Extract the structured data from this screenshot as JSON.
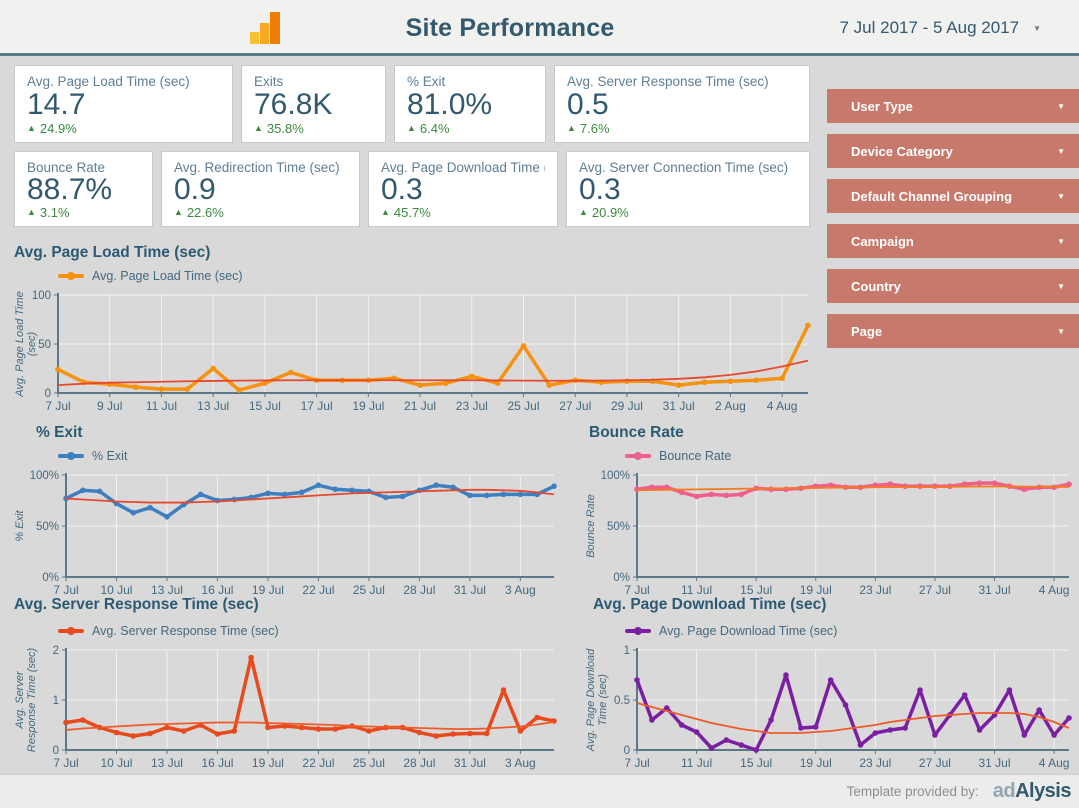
{
  "header": {
    "title": "Site Performance",
    "date_range": "7 Jul 2017 - 5 Aug 2017"
  },
  "scorecards": [
    {
      "label": "Avg. Page Load Time (sec)",
      "value": "14.7",
      "delta": "24.9%"
    },
    {
      "label": "Exits",
      "value": "76.8K",
      "delta": "35.8%"
    },
    {
      "label": "% Exit",
      "value": "81.0%",
      "delta": "6.4%"
    },
    {
      "label": "Avg. Server Response Time (sec)",
      "value": "0.5",
      "delta": "7.6%"
    },
    {
      "label": "Bounce Rate",
      "value": "88.7%",
      "delta": "3.1%"
    },
    {
      "label": "Avg. Redirection Time (sec)",
      "value": "0.9",
      "delta": "22.6%"
    },
    {
      "label": "Avg. Page Download Time (sec)",
      "value": "0.3",
      "delta": "45.7%"
    },
    {
      "label": "Avg. Server Connection Time (sec)",
      "value": "0.3",
      "delta": "20.9%"
    }
  ],
  "filters": [
    "User Type",
    "Device Category",
    "Default Channel Grouping",
    "Campaign",
    "Country",
    "Page"
  ],
  "footer": {
    "credit": "Template provided by:",
    "brand_ad": "ad",
    "brand_alysis": "Alysis"
  },
  "colors": {
    "page_bg": "#d9d9d9",
    "header_bg": "#f1f1f0",
    "card_bg": "#ffffff",
    "title_text": "#33596e",
    "label_text": "#5e7e95",
    "delta_green": "#3b8a3f",
    "filter_bg": "#c7796b",
    "axis": "#5b7886",
    "tick_text": "#44687e",
    "grid": "#f2f2f2"
  },
  "chart_data": [
    {
      "type": "line",
      "title": "Avg. Page Load Time (sec)",
      "series_name": "Avg. Page Load Time (sec)",
      "color": "#f6920f",
      "trend_color": "#e8492c",
      "ylabel_lines": [
        "Avg. Page Load Time",
        "(sec)"
      ],
      "ylim": [
        0,
        100
      ],
      "yticks": [
        0,
        50,
        100
      ],
      "ytick_labels": [
        "0",
        "50",
        "100"
      ],
      "x_tick_every": 2,
      "x_tick_labels": [
        "7 Jul",
        "9 Jul",
        "11 Jul",
        "13 Jul",
        "15 Jul",
        "17 Jul",
        "19 Jul",
        "21 Jul",
        "23 Jul",
        "25 Jul",
        "27 Jul",
        "29 Jul",
        "31 Jul",
        "2 Aug",
        "4 Aug"
      ],
      "grid": true,
      "legend_position": "top-left",
      "values": [
        24,
        11,
        9,
        6,
        4,
        4,
        25,
        3,
        10,
        21,
        13,
        13,
        13,
        15,
        8,
        10,
        17,
        10,
        48,
        8,
        13,
        11,
        12,
        12,
        8,
        11,
        12,
        13,
        15,
        69
      ],
      "trend": [
        8,
        9.5,
        10.5,
        11,
        11.5,
        12,
        12.3,
        12.6,
        12.8,
        13,
        13,
        13,
        13,
        13,
        13,
        13,
        13,
        12.8,
        12.6,
        12.5,
        12.5,
        12.6,
        13,
        13.5,
        14.5,
        16,
        18.5,
        22,
        27,
        33
      ]
    },
    {
      "type": "line",
      "title": "% Exit",
      "series_name": "% Exit",
      "color": "#3e7fc1",
      "trend_color": "#e8492c",
      "ylabel_lines": [
        "% Exit"
      ],
      "ylim": [
        0,
        100
      ],
      "yticks": [
        0,
        50,
        100
      ],
      "ytick_labels": [
        "0%",
        "50%",
        "100%"
      ],
      "x_tick_every": 3,
      "x_tick_labels": [
        "7 Jul",
        "10 Jul",
        "13 Jul",
        "16 Jul",
        "19 Jul",
        "22 Jul",
        "25 Jul",
        "28 Jul",
        "31 Jul",
        "3 Aug"
      ],
      "grid": true,
      "legend_position": "top-left",
      "values": [
        77,
        85,
        84,
        72,
        63,
        68,
        59,
        71,
        81,
        75,
        76,
        78,
        82,
        81,
        83,
        90,
        86,
        85,
        84,
        78,
        79,
        85,
        90,
        88,
        80,
        80,
        81,
        81,
        81,
        89
      ],
      "trend": [
        77,
        76,
        75,
        74,
        73.5,
        73,
        73,
        73,
        73.5,
        74,
        75,
        76,
        77,
        78,
        79,
        80,
        81,
        82,
        82.5,
        83,
        83.5,
        84,
        84.5,
        85,
        85.5,
        85.5,
        85,
        84.5,
        83,
        81
      ]
    },
    {
      "type": "line",
      "title": "Bounce Rate",
      "series_name": "Bounce Rate",
      "color": "#ee5f8d",
      "trend_color": "#f57b20",
      "ylabel_lines": [
        "Bounce Rate"
      ],
      "ylim": [
        0,
        100
      ],
      "yticks": [
        0,
        50,
        100
      ],
      "ytick_labels": [
        "0%",
        "50%",
        "100%"
      ],
      "x_tick_every": 4,
      "x_tick_labels": [
        "7 Jul",
        "11 Jul",
        "15 Jul",
        "19 Jul",
        "23 Jul",
        "27 Jul",
        "31 Jul",
        "4 Aug"
      ],
      "grid": true,
      "legend_position": "top-left",
      "values": [
        86,
        88,
        88,
        83,
        79,
        81,
        80,
        81,
        87,
        86,
        86,
        87,
        89,
        90,
        88,
        88,
        90,
        91,
        89,
        89,
        89,
        89,
        91,
        92,
        92,
        89,
        86,
        88,
        88,
        91
      ],
      "trend": [
        85,
        85.3,
        85.5,
        85.7,
        85.9,
        86.1,
        86.3,
        86.5,
        86.7,
        86.9,
        87,
        87.2,
        87.4,
        87.5,
        87.7,
        87.8,
        88,
        88.1,
        88.2,
        88.3,
        88.4,
        88.5,
        88.6,
        88.7,
        88.7,
        88.7,
        88.6,
        88.5,
        88.4,
        88.3
      ]
    },
    {
      "type": "line",
      "title": "Avg. Server Response Time (sec)",
      "series_name": "Avg. Server Response Time (sec)",
      "color": "#e8491d",
      "trend_color": "#f05a28",
      "ylabel_lines": [
        "Avg. Server",
        "Response Time (sec)"
      ],
      "ylim": [
        0,
        2
      ],
      "yticks": [
        0,
        1,
        2
      ],
      "ytick_labels": [
        "0",
        "1",
        "2"
      ],
      "x_tick_every": 3,
      "x_tick_labels": [
        "7 Jul",
        "10 Jul",
        "13 Jul",
        "16 Jul",
        "19 Jul",
        "22 Jul",
        "25 Jul",
        "28 Jul",
        "31 Jul",
        "3 Aug"
      ],
      "grid": true,
      "legend_position": "top-left",
      "values": [
        0.55,
        0.6,
        0.45,
        0.35,
        0.28,
        0.33,
        0.45,
        0.38,
        0.5,
        0.32,
        0.38,
        1.85,
        0.45,
        0.48,
        0.45,
        0.42,
        0.42,
        0.48,
        0.38,
        0.45,
        0.45,
        0.35,
        0.28,
        0.32,
        0.33,
        0.33,
        1.2,
        0.38,
        0.65,
        0.58
      ],
      "trend": [
        0.4,
        0.43,
        0.45,
        0.47,
        0.49,
        0.51,
        0.52,
        0.53,
        0.54,
        0.55,
        0.55,
        0.55,
        0.54,
        0.53,
        0.52,
        0.51,
        0.5,
        0.48,
        0.47,
        0.46,
        0.45,
        0.44,
        0.43,
        0.42,
        0.42,
        0.43,
        0.45,
        0.47,
        0.51,
        0.56
      ]
    },
    {
      "type": "line",
      "title": "Avg. Page Download Time (sec)",
      "series_name": "Avg. Page Download Time (sec)",
      "color": "#7b1fa2",
      "trend_color": "#f05a28",
      "ylabel_lines": [
        "Avg. Page Download",
        "Time (sec)"
      ],
      "ylim": [
        0,
        1
      ],
      "yticks": [
        0,
        0.5,
        1
      ],
      "ytick_labels": [
        "0",
        "0.5",
        "1"
      ],
      "x_tick_every": 4,
      "x_tick_labels": [
        "7 Jul",
        "11 Jul",
        "15 Jul",
        "19 Jul",
        "23 Jul",
        "27 Jul",
        "31 Jul",
        "4 Aug"
      ],
      "grid": true,
      "legend_position": "top-left",
      "values": [
        0.7,
        0.3,
        0.42,
        0.25,
        0.18,
        0.02,
        0.1,
        0.05,
        0,
        0.3,
        0.75,
        0.22,
        0.23,
        0.7,
        0.45,
        0.05,
        0.17,
        0.2,
        0.22,
        0.6,
        0.15,
        0.35,
        0.55,
        0.2,
        0.35,
        0.6,
        0.15,
        0.4,
        0.15,
        0.32
      ],
      "trend": [
        0.47,
        0.43,
        0.39,
        0.35,
        0.31,
        0.27,
        0.24,
        0.21,
        0.19,
        0.17,
        0.17,
        0.17,
        0.18,
        0.19,
        0.21,
        0.23,
        0.25,
        0.28,
        0.3,
        0.32,
        0.34,
        0.35,
        0.36,
        0.37,
        0.37,
        0.37,
        0.36,
        0.33,
        0.28,
        0.22
      ]
    }
  ]
}
